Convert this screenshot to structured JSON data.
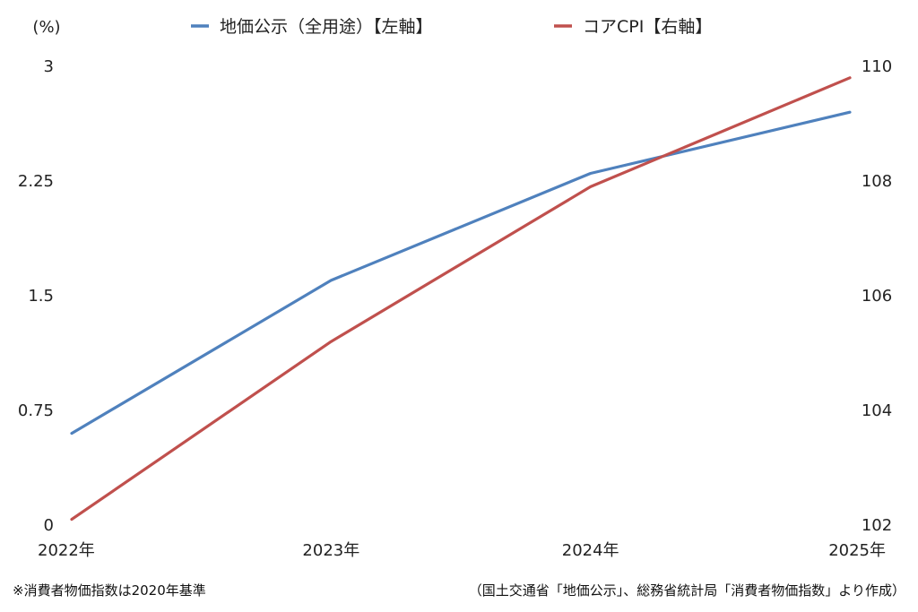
{
  "chart_data": {
    "type": "line",
    "categories": [
      "2022年",
      "2023年",
      "2024年",
      "2025年"
    ],
    "left_axis": {
      "unit_label": "(%)",
      "ylim": [
        0,
        3
      ],
      "ticks": [
        "0",
        "0.75",
        "1.5",
        "2.25",
        "3"
      ]
    },
    "right_axis": {
      "ylim": [
        102,
        110
      ],
      "ticks": [
        "102",
        "104",
        "106",
        "108",
        "110"
      ]
    },
    "series": [
      {
        "name": "地価公示（全用途）【左軸】",
        "axis": "left",
        "color": "#4f81bd",
        "values": [
          0.6,
          1.6,
          2.3,
          2.7
        ]
      },
      {
        "name": "コアCPI【右軸】",
        "axis": "right",
        "color": "#c0504d",
        "values": [
          102.1,
          105.2,
          107.9,
          109.8
        ]
      }
    ],
    "legend": "top-center",
    "grid": false
  },
  "footnotes": {
    "left": "※消費者物価指数は2020年基準",
    "right": "（国土交通省「地価公示」、総務省統計局「消費者物価指数」より作成）"
  }
}
